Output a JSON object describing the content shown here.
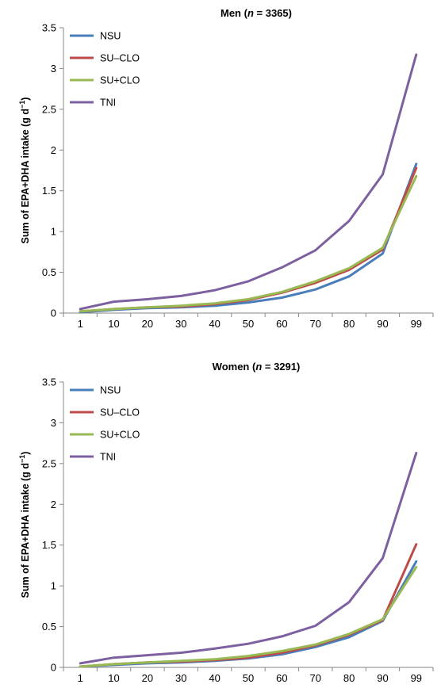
{
  "chart_data": [
    {
      "type": "line",
      "title": "Men (n = 3365)",
      "title_parts": [
        "Men (",
        "n",
        " = 3365)"
      ],
      "ylabel": "Sum of EPA+DHA intake (g d",
      "ylabel_sup": "−1",
      "ylabel_close": ")",
      "xlabel": "",
      "categories": [
        "1",
        "10",
        "20",
        "30",
        "40",
        "50",
        "60",
        "70",
        "80",
        "90",
        "99"
      ],
      "y_ticks": [
        "0",
        "0.5",
        "1",
        "1.5",
        "2",
        "2.5",
        "3",
        "3.5"
      ],
      "ylim": [
        0,
        3.5
      ],
      "grid": false,
      "legend": "top-left",
      "series": [
        {
          "name": "NSU",
          "color": "#4a7ebb",
          "values": [
            0.01,
            0.04,
            0.06,
            0.07,
            0.09,
            0.13,
            0.19,
            0.29,
            0.45,
            0.73,
            1.83
          ]
        },
        {
          "name": "SU–CLO",
          "color": "#be4b48",
          "values": [
            0.02,
            0.05,
            0.07,
            0.08,
            0.11,
            0.16,
            0.25,
            0.37,
            0.53,
            0.78,
            1.78
          ]
        },
        {
          "name": "SU+CLO",
          "color": "#98b954",
          "values": [
            0.02,
            0.05,
            0.07,
            0.09,
            0.12,
            0.17,
            0.26,
            0.39,
            0.55,
            0.8,
            1.68
          ]
        },
        {
          "name": "TNI",
          "color": "#7d60a0",
          "values": [
            0.05,
            0.14,
            0.17,
            0.21,
            0.28,
            0.39,
            0.56,
            0.77,
            1.13,
            1.7,
            3.17
          ]
        }
      ]
    },
    {
      "type": "line",
      "title": "Women (n = 3291)",
      "title_parts": [
        "Women (",
        "n",
        " = 3291)"
      ],
      "ylabel": "Sum of EPA+DHA intake (g d",
      "ylabel_sup": "−1",
      "ylabel_close": ")",
      "xlabel": "",
      "categories": [
        "1",
        "10",
        "20",
        "30",
        "40",
        "50",
        "60",
        "70",
        "80",
        "90",
        "99"
      ],
      "y_ticks": [
        "0",
        "0.5",
        "1",
        "1.5",
        "2",
        "2.5",
        "3",
        "3.5"
      ],
      "ylim": [
        0,
        3.5
      ],
      "grid": false,
      "legend": "top-left",
      "series": [
        {
          "name": "NSU",
          "color": "#4a7ebb",
          "values": [
            0.01,
            0.03,
            0.05,
            0.06,
            0.08,
            0.11,
            0.16,
            0.25,
            0.37,
            0.57,
            1.3
          ]
        },
        {
          "name": "SU–CLO",
          "color": "#be4b48",
          "values": [
            0.01,
            0.04,
            0.06,
            0.07,
            0.09,
            0.12,
            0.18,
            0.27,
            0.4,
            0.58,
            1.51
          ]
        },
        {
          "name": "SU+CLO",
          "color": "#98b954",
          "values": [
            0.01,
            0.04,
            0.06,
            0.08,
            0.1,
            0.14,
            0.2,
            0.28,
            0.41,
            0.59,
            1.23
          ]
        },
        {
          "name": "TNI",
          "color": "#7d60a0",
          "values": [
            0.05,
            0.12,
            0.15,
            0.18,
            0.23,
            0.29,
            0.38,
            0.51,
            0.8,
            1.34,
            2.63
          ]
        }
      ]
    }
  ]
}
